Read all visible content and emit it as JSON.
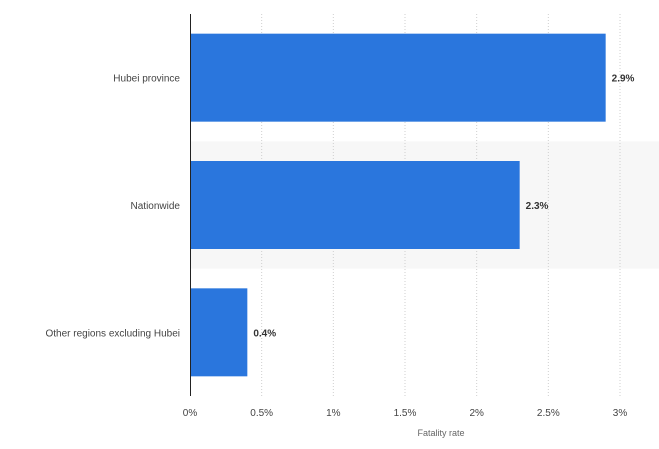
{
  "chart_data": {
    "type": "bar",
    "orientation": "horizontal",
    "categories": [
      "Hubei province",
      "Nationwide",
      "Other regions excluding Hubei"
    ],
    "values": [
      2.9,
      2.3,
      0.4
    ],
    "value_labels": [
      "2.9%",
      "2.3%",
      "0.4%"
    ],
    "xlabel": "Fatality rate",
    "ylabel": "",
    "xlim": [
      0,
      3
    ],
    "ticks": [
      0,
      0.5,
      1,
      1.5,
      2,
      2.5,
      3
    ],
    "tick_labels": [
      "0%",
      "0.5%",
      "1%",
      "1.5%",
      "2%",
      "2.5%",
      "3%"
    ],
    "grid": true,
    "highlighted_row": "Nationwide",
    "colors": {
      "bar": "#2a76dd",
      "grid": "#cfcfcf",
      "axis": "#222222",
      "label": "#444444",
      "value_label": "#333333",
      "highlight_band": "#f7f7f7"
    }
  }
}
